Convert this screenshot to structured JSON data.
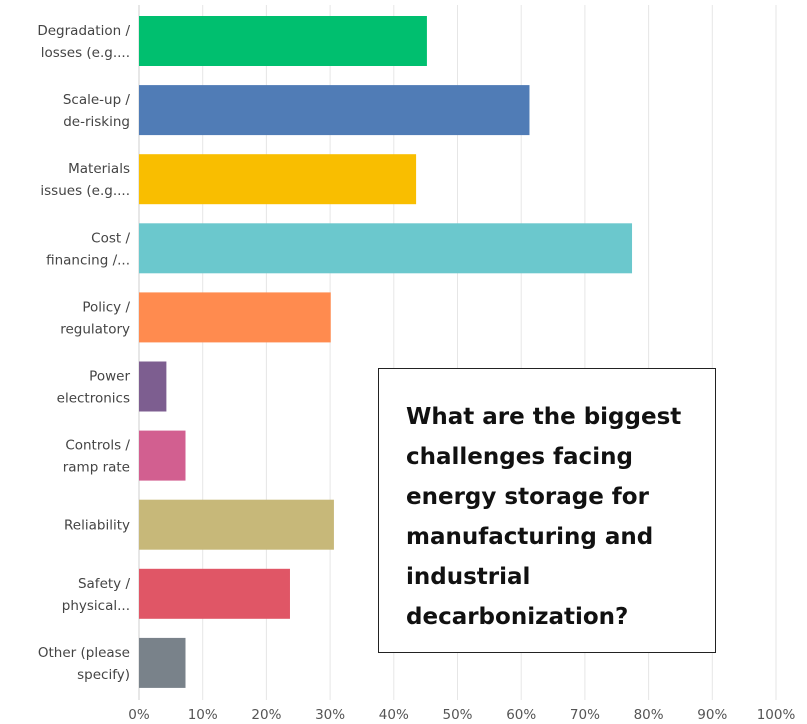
{
  "chart_data": {
    "type": "bar",
    "orientation": "horizontal",
    "categories": [
      [
        "Degradation /",
        "losses (e.g...."
      ],
      [
        "Scale-up /",
        "de-risking"
      ],
      [
        "Materials",
        "issues (e.g...."
      ],
      [
        "Cost /",
        "financing /..."
      ],
      [
        "Policy /",
        "regulatory"
      ],
      [
        "Power",
        "electronics"
      ],
      [
        "Controls /",
        "ramp rate"
      ],
      [
        "Reliability"
      ],
      [
        "Safety /",
        "physical..."
      ],
      [
        "Other (please",
        "specify)"
      ]
    ],
    "values": [
      45.2,
      61.3,
      43.5,
      77.4,
      30.1,
      4.3,
      7.3,
      30.6,
      23.7,
      7.3
    ],
    "colors": [
      "#00bf6f",
      "#507cb6",
      "#f9be00",
      "#6bc8cd",
      "#ff8b4f",
      "#7d5e90",
      "#d25f90",
      "#c7b879",
      "#e05666",
      "#79828a"
    ],
    "xlim": [
      0,
      100
    ],
    "xticks": [
      "0%",
      "10%",
      "20%",
      "30%",
      "40%",
      "50%",
      "60%",
      "70%",
      "80%",
      "90%",
      "100%"
    ],
    "grid": true,
    "title": "",
    "xlabel": "",
    "ylabel": ""
  },
  "callout": {
    "text": "What are the biggest challenges facing energy storage for manufacturing and industrial decarbonization?"
  }
}
